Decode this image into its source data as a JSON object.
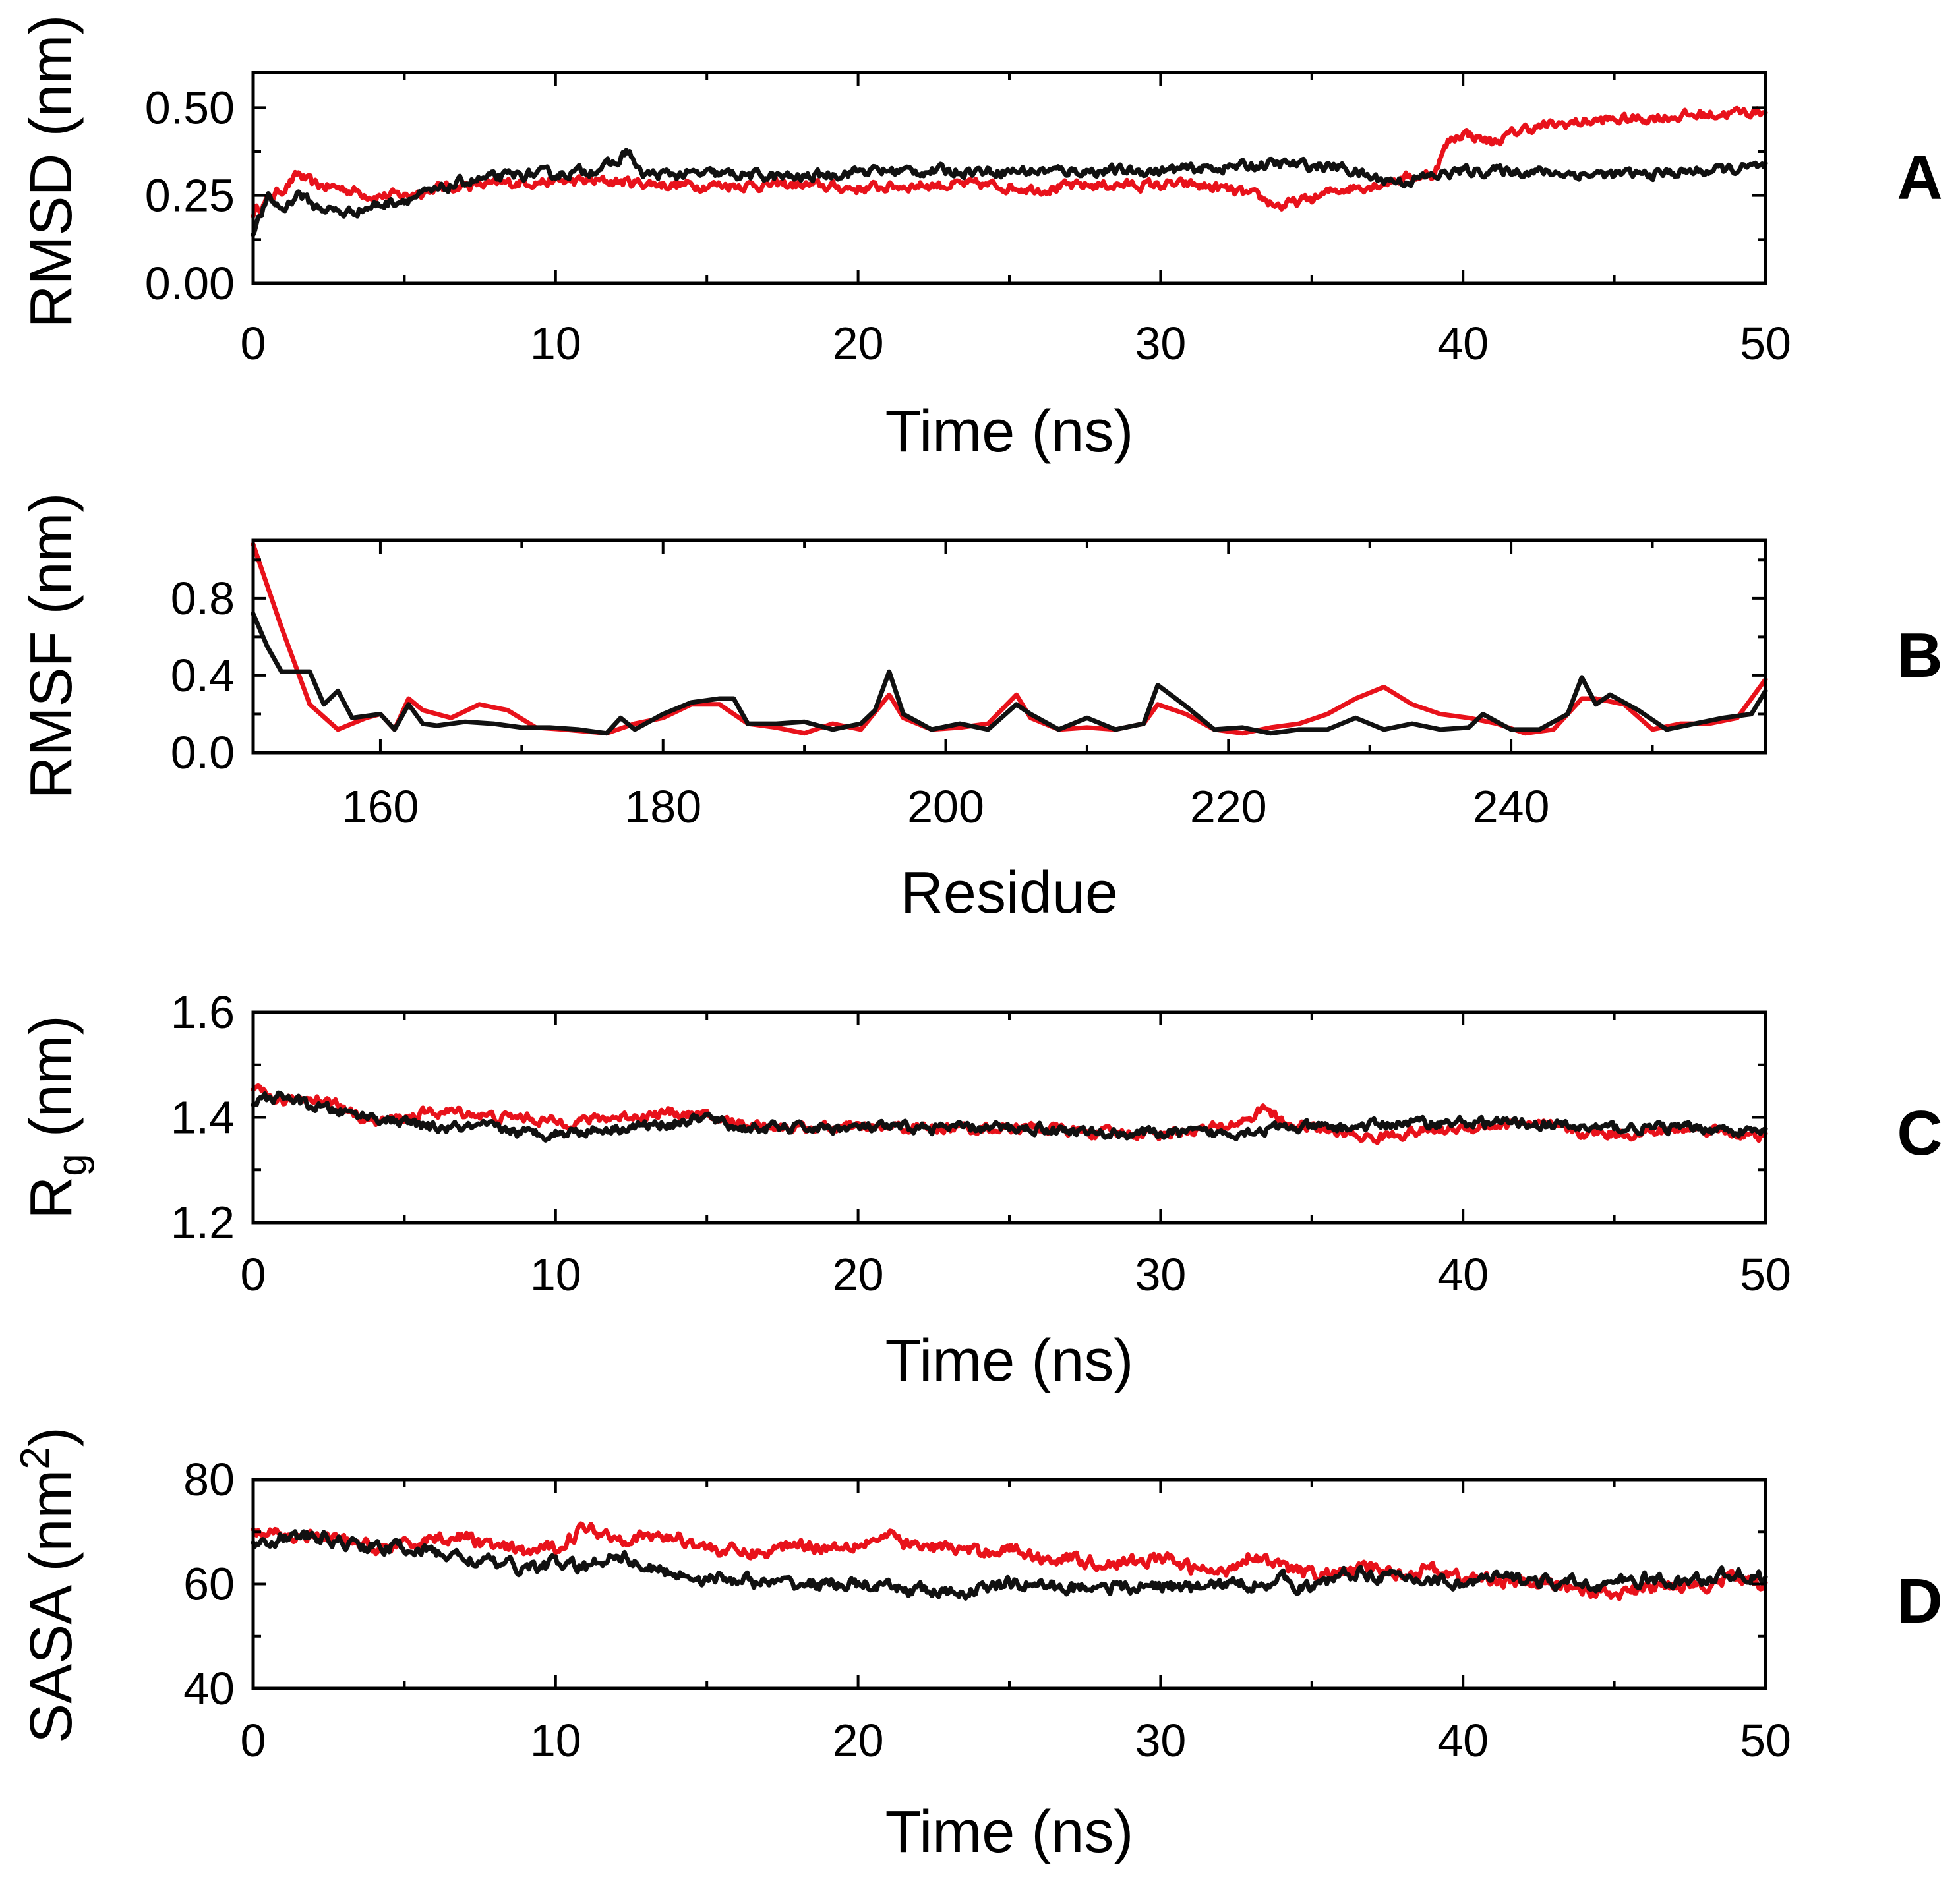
{
  "colors": {
    "red": "#e8121b",
    "black": "#111111"
  },
  "chart_data": [
    {
      "type": "line",
      "panel_label": "A",
      "xlabel": "Time (ns)",
      "ylabel": "RMSD (nm)",
      "xlim": [
        0,
        50
      ],
      "ylim": [
        0,
        0.6
      ],
      "xticks": [
        0,
        10,
        20,
        30,
        40,
        50
      ],
      "xtick_labels": [
        "0",
        "10",
        "20",
        "30",
        "40",
        "50"
      ],
      "yticks": [
        0,
        0.25,
        0.5
      ],
      "ytick_labels": [
        "0.00",
        "0.25",
        "0.50"
      ],
      "noise": 0.012,
      "series": [
        {
          "color": "red",
          "x": [
            0,
            0.5,
            1,
            1.5,
            2,
            3,
            4,
            5,
            6,
            7,
            8,
            9,
            10,
            12,
            14,
            16,
            18,
            20,
            22,
            24,
            26,
            28,
            30,
            31,
            32,
            33,
            34,
            35,
            36,
            37,
            38,
            39,
            39.5,
            40,
            41,
            42,
            44,
            46,
            48,
            50
          ],
          "y": [
            0.2,
            0.24,
            0.27,
            0.31,
            0.28,
            0.27,
            0.25,
            0.25,
            0.27,
            0.28,
            0.28,
            0.29,
            0.29,
            0.29,
            0.28,
            0.28,
            0.28,
            0.27,
            0.28,
            0.28,
            0.27,
            0.28,
            0.28,
            0.28,
            0.27,
            0.25,
            0.22,
            0.24,
            0.27,
            0.28,
            0.3,
            0.31,
            0.4,
            0.43,
            0.4,
            0.44,
            0.46,
            0.47,
            0.48,
            0.49
          ]
        },
        {
          "color": "black",
          "x": [
            0,
            0.5,
            1,
            1.5,
            2,
            3,
            4,
            5,
            6,
            7,
            8,
            9,
            10,
            11,
            12,
            12.4,
            12.8,
            14,
            16,
            18,
            20,
            22,
            24,
            26,
            28,
            30,
            32,
            34,
            36,
            37,
            38,
            40,
            42,
            44,
            46,
            48,
            50
          ],
          "y": [
            0.15,
            0.24,
            0.21,
            0.26,
            0.22,
            0.2,
            0.22,
            0.24,
            0.26,
            0.29,
            0.3,
            0.31,
            0.31,
            0.32,
            0.34,
            0.38,
            0.31,
            0.31,
            0.31,
            0.3,
            0.32,
            0.32,
            0.32,
            0.32,
            0.32,
            0.32,
            0.33,
            0.34,
            0.33,
            0.3,
            0.29,
            0.32,
            0.32,
            0.31,
            0.31,
            0.32,
            0.33
          ]
        }
      ]
    },
    {
      "type": "line",
      "panel_label": "B",
      "xlabel": "Residue",
      "ylabel": "RMSF (nm)",
      "xlim": [
        151,
        258
      ],
      "ylim": [
        0,
        1.1
      ],
      "xticks": [
        160,
        180,
        200,
        220,
        240
      ],
      "xtick_labels": [
        "160",
        "180",
        "200",
        "220",
        "240"
      ],
      "yticks": [
        0,
        0.4,
        0.8
      ],
      "ytick_labels": [
        "0.0",
        "0.4",
        "0.8"
      ],
      "noise": 0,
      "series": [
        {
          "color": "red",
          "x": [
            151,
            153,
            155,
            157,
            159,
            160,
            161,
            162,
            163,
            165,
            167,
            169,
            171,
            173,
            176,
            178,
            180,
            182,
            184,
            186,
            188,
            190,
            192,
            194,
            196,
            197,
            199,
            201,
            203,
            205,
            206,
            208,
            210,
            212,
            214,
            215,
            217,
            219,
            221,
            223,
            225,
            227,
            229,
            231,
            233,
            235,
            237,
            239,
            241,
            243,
            245,
            246,
            248,
            250,
            252,
            254,
            256,
            258
          ],
          "y": [
            1.08,
            0.65,
            0.25,
            0.12,
            0.18,
            0.2,
            0.12,
            0.28,
            0.22,
            0.18,
            0.25,
            0.22,
            0.13,
            0.12,
            0.1,
            0.15,
            0.18,
            0.25,
            0.25,
            0.15,
            0.13,
            0.1,
            0.15,
            0.12,
            0.3,
            0.18,
            0.12,
            0.13,
            0.15,
            0.3,
            0.18,
            0.12,
            0.13,
            0.12,
            0.15,
            0.25,
            0.2,
            0.12,
            0.1,
            0.13,
            0.15,
            0.2,
            0.28,
            0.34,
            0.25,
            0.2,
            0.18,
            0.15,
            0.1,
            0.12,
            0.28,
            0.28,
            0.25,
            0.12,
            0.15,
            0.15,
            0.18,
            0.38
          ]
        },
        {
          "color": "black",
          "x": [
            151,
            152,
            153,
            155,
            156,
            157,
            158,
            160,
            161,
            162,
            163,
            164,
            166,
            168,
            170,
            172,
            174,
            176,
            177,
            178,
            180,
            182,
            184,
            185,
            186,
            188,
            190,
            192,
            194,
            195,
            196,
            197,
            199,
            201,
            203,
            205,
            206,
            208,
            210,
            212,
            214,
            215,
            217,
            219,
            221,
            223,
            225,
            227,
            229,
            231,
            233,
            235,
            237,
            238,
            240,
            242,
            244,
            245,
            246,
            247,
            249,
            251,
            253,
            255,
            257,
            258
          ],
          "y": [
            0.72,
            0.55,
            0.42,
            0.42,
            0.25,
            0.32,
            0.18,
            0.2,
            0.12,
            0.25,
            0.15,
            0.14,
            0.16,
            0.15,
            0.13,
            0.13,
            0.12,
            0.1,
            0.18,
            0.12,
            0.2,
            0.26,
            0.28,
            0.28,
            0.15,
            0.15,
            0.16,
            0.12,
            0.15,
            0.22,
            0.42,
            0.2,
            0.12,
            0.15,
            0.12,
            0.25,
            0.2,
            0.12,
            0.18,
            0.12,
            0.15,
            0.35,
            0.24,
            0.12,
            0.13,
            0.1,
            0.12,
            0.12,
            0.18,
            0.12,
            0.15,
            0.12,
            0.13,
            0.2,
            0.12,
            0.12,
            0.2,
            0.39,
            0.25,
            0.3,
            0.22,
            0.12,
            0.15,
            0.18,
            0.2,
            0.32
          ]
        }
      ]
    },
    {
      "type": "line",
      "panel_label": "C",
      "xlabel": "Time (ns)",
      "ylabel": "R",
      "ylabel_subscript": "g",
      "ylabel_suffix": " (nm)",
      "xlim": [
        0,
        50
      ],
      "ylim": [
        1.2,
        1.6
      ],
      "xticks": [
        0,
        10,
        20,
        30,
        40,
        50
      ],
      "xtick_labels": [
        "0",
        "10",
        "20",
        "30",
        "40",
        "50"
      ],
      "yticks": [
        1.2,
        1.4,
        1.6
      ],
      "ytick_labels": [
        "1.2",
        "1.4",
        "1.6"
      ],
      "noise": 0.008,
      "series": [
        {
          "color": "red",
          "x": [
            0,
            1,
            2,
            3,
            4,
            5,
            6,
            7,
            8,
            9,
            10,
            12,
            14,
            16,
            18,
            20,
            22,
            24,
            26,
            28,
            30,
            32,
            33,
            33.5,
            34,
            35,
            36,
            37,
            38,
            40,
            42,
            44,
            46,
            48,
            50
          ],
          "y": [
            1.45,
            1.43,
            1.44,
            1.42,
            1.39,
            1.4,
            1.41,
            1.41,
            1.4,
            1.4,
            1.39,
            1.4,
            1.41,
            1.39,
            1.38,
            1.38,
            1.38,
            1.38,
            1.38,
            1.37,
            1.37,
            1.38,
            1.4,
            1.42,
            1.39,
            1.38,
            1.37,
            1.36,
            1.37,
            1.38,
            1.39,
            1.37,
            1.37,
            1.38,
            1.36
          ]
        },
        {
          "color": "black",
          "x": [
            0,
            1,
            2,
            3,
            4,
            5,
            6,
            7,
            8,
            9,
            10,
            12,
            14,
            15,
            16,
            18,
            20,
            22,
            24,
            26,
            28,
            30,
            32,
            34,
            36,
            38,
            40,
            42,
            44,
            46,
            48,
            50
          ],
          "y": [
            1.43,
            1.44,
            1.42,
            1.41,
            1.4,
            1.39,
            1.38,
            1.38,
            1.38,
            1.37,
            1.37,
            1.38,
            1.39,
            1.4,
            1.38,
            1.38,
            1.38,
            1.38,
            1.38,
            1.38,
            1.37,
            1.37,
            1.37,
            1.38,
            1.38,
            1.39,
            1.39,
            1.39,
            1.38,
            1.38,
            1.38,
            1.37
          ]
        }
      ]
    },
    {
      "type": "line",
      "panel_label": "D",
      "xlabel": "Time (ns)",
      "ylabel": "SASA (nm",
      "ylabel_superscript": "2",
      "ylabel_suffix": ")",
      "xlim": [
        0,
        50
      ],
      "ylim": [
        40,
        80
      ],
      "xticks": [
        0,
        10,
        20,
        30,
        40,
        50
      ],
      "xtick_labels": [
        "0",
        "10",
        "20",
        "30",
        "40",
        "50"
      ],
      "yticks": [
        40,
        60,
        80
      ],
      "ytick_labels": [
        "40",
        "60",
        "80"
      ],
      "noise": 1.0,
      "series": [
        {
          "color": "red",
          "x": [
            0,
            1,
            2,
            3,
            4,
            5,
            6,
            7,
            8,
            9,
            10,
            11,
            12,
            13,
            14,
            15,
            16,
            17,
            18,
            19,
            20,
            21,
            22,
            23,
            24,
            25,
            26,
            27,
            28,
            29,
            30,
            31,
            32,
            33,
            34,
            35,
            36,
            37,
            38,
            39,
            40,
            41,
            42,
            43,
            44,
            45,
            46,
            47,
            48,
            49,
            50
          ],
          "y": [
            70,
            69,
            69,
            68,
            67,
            67,
            69,
            69,
            67,
            66,
            67,
            71,
            69,
            69,
            69,
            67,
            66,
            66,
            68,
            67,
            68,
            69,
            67,
            67,
            66,
            67,
            65,
            65,
            64,
            64,
            65,
            63,
            62,
            66,
            63,
            62,
            62,
            63,
            62,
            63,
            61,
            61,
            60,
            60,
            59,
            58,
            59,
            60,
            60,
            61,
            60
          ]
        },
        {
          "color": "black",
          "x": [
            0,
            1,
            2,
            3,
            4,
            5,
            6,
            7,
            8,
            9,
            10,
            11,
            12,
            13,
            14,
            15,
            16,
            17,
            18,
            19,
            20,
            21,
            22,
            23,
            24,
            25,
            26,
            27,
            28,
            29,
            30,
            31,
            32,
            33,
            34,
            35,
            36,
            37,
            38,
            39,
            40,
            41,
            42,
            43,
            44,
            45,
            46,
            47,
            48,
            49,
            50
          ],
          "y": [
            68,
            69,
            69,
            68,
            67,
            67,
            66,
            65,
            64,
            63,
            64,
            63,
            66,
            63,
            62,
            61,
            61,
            60,
            60,
            60,
            60,
            59,
            59,
            58,
            59,
            60,
            60,
            59,
            60,
            59,
            60,
            59,
            60,
            60,
            61,
            59,
            62,
            62,
            61,
            61,
            60,
            61,
            61,
            60,
            60,
            60,
            61,
            60,
            61,
            62,
            61
          ]
        }
      ]
    }
  ]
}
